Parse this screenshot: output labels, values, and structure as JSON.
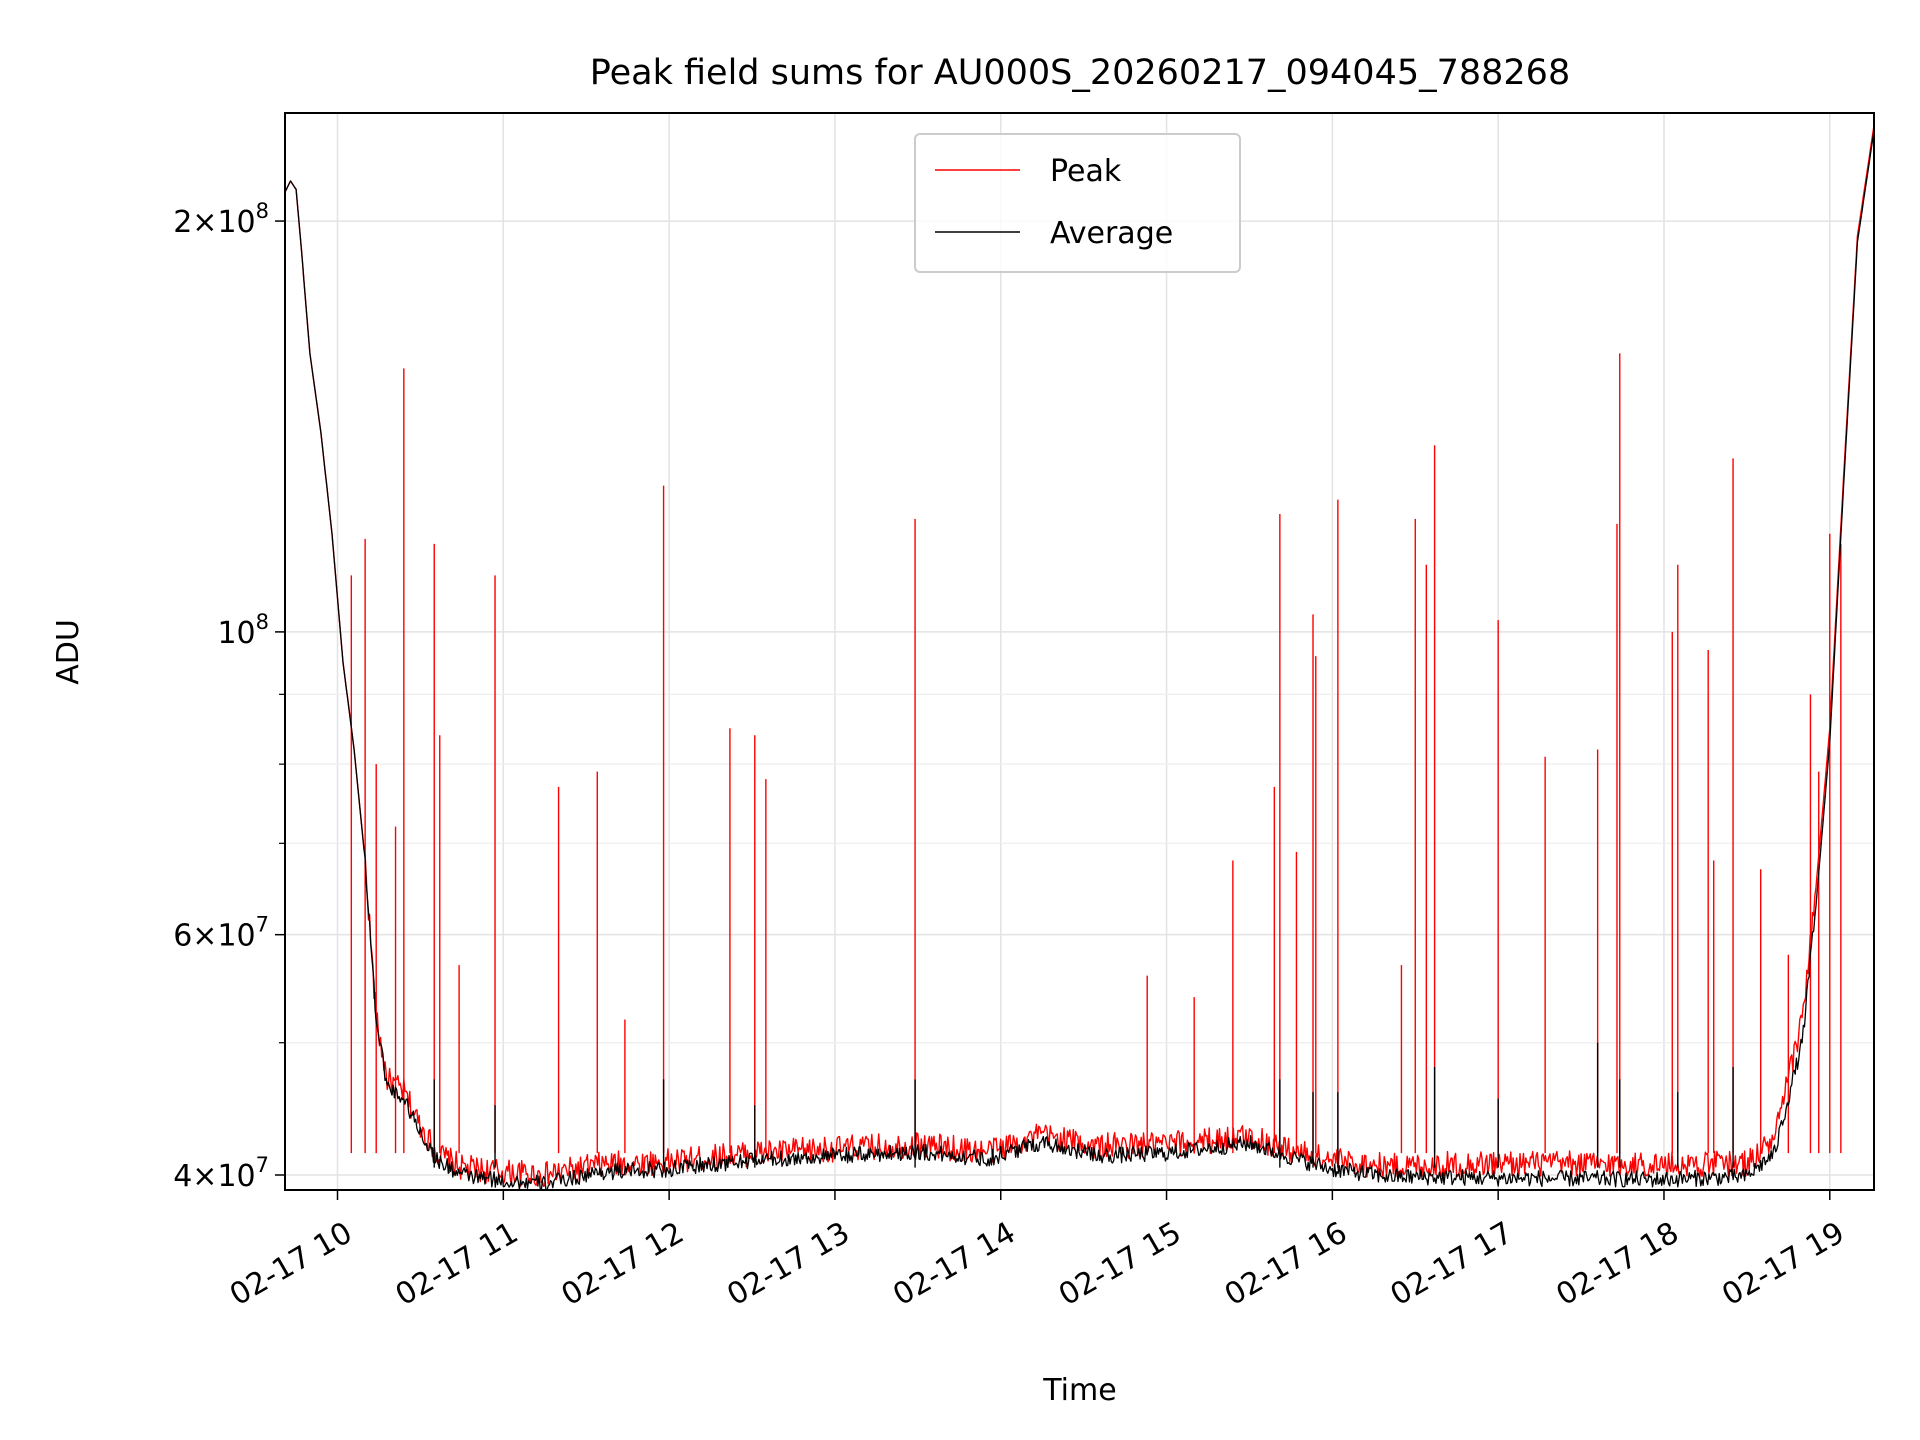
{
  "chart_data": {
    "type": "line",
    "title": "Peak field sums for AU000S_20260217_094045_788268",
    "xlabel": "Time",
    "ylabel": "ADU",
    "yscale": "log",
    "xlim": [
      "2026-02-17 09:41",
      "2026-02-17 19:16"
    ],
    "ylim": [
      39000000,
      240000000
    ],
    "grid": true,
    "legend": {
      "placement": "upper center",
      "entries": [
        "Peak",
        "Average"
      ]
    },
    "x_ticks": [
      {
        "time": "2026-02-17 10:00",
        "label": "02-17 10"
      },
      {
        "time": "2026-02-17 11:00",
        "label": "02-17 11"
      },
      {
        "time": "2026-02-17 12:00",
        "label": "02-17 12"
      },
      {
        "time": "2026-02-17 13:00",
        "label": "02-17 13"
      },
      {
        "time": "2026-02-17 14:00",
        "label": "02-17 14"
      },
      {
        "time": "2026-02-17 15:00",
        "label": "02-17 15"
      },
      {
        "time": "2026-02-17 16:00",
        "label": "02-17 16"
      },
      {
        "time": "2026-02-17 17:00",
        "label": "02-17 17"
      },
      {
        "time": "2026-02-17 18:00",
        "label": "02-17 18"
      },
      {
        "time": "2026-02-17 19:00",
        "label": "02-17 19"
      }
    ],
    "y_major_ticks": [
      {
        "value": 40000000,
        "mantissa": "4",
        "exp": "7"
      },
      {
        "value": 60000000,
        "mantissa": "6",
        "exp": "7"
      },
      {
        "value": 100000000,
        "mantissa": "",
        "exp": "8"
      },
      {
        "value": 200000000,
        "mantissa": "2",
        "exp": "8"
      }
    ],
    "y_minor_ticks": [
      50000000,
      70000000,
      80000000,
      90000000
    ],
    "series": [
      {
        "name": "Peak",
        "color": "#ff0000",
        "baseline": [
          [
            "2026-02-17 09:41",
            210000000
          ],
          [
            "2026-02-17 09:43",
            214000000
          ],
          [
            "2026-02-17 09:45",
            211000000
          ],
          [
            "2026-02-17 09:47",
            190000000
          ],
          [
            "2026-02-17 09:50",
            160000000
          ],
          [
            "2026-02-17 09:54",
            140000000
          ],
          [
            "2026-02-17 09:58",
            118000000
          ],
          [
            "2026-02-17 10:02",
            95000000
          ],
          [
            "2026-02-17 10:06",
            82000000
          ],
          [
            "2026-02-17 10:10",
            68000000
          ],
          [
            "2026-02-17 10:14",
            52000000
          ],
          [
            "2026-02-17 10:18",
            47000000
          ],
          [
            "2026-02-17 10:24",
            46000000
          ],
          [
            "2026-02-17 10:30",
            43500000
          ],
          [
            "2026-02-17 10:36",
            41500000
          ],
          [
            "2026-02-17 10:45",
            40500000
          ],
          [
            "2026-02-17 11:00",
            40200000
          ],
          [
            "2026-02-17 11:15",
            40000000
          ],
          [
            "2026-02-17 11:35",
            40700000
          ],
          [
            "2026-02-17 12:00",
            40900000
          ],
          [
            "2026-02-17 12:30",
            41500000
          ],
          [
            "2026-02-17 13:00",
            41800000
          ],
          [
            "2026-02-17 13:30",
            42100000
          ],
          [
            "2026-02-17 13:55",
            41600000
          ],
          [
            "2026-02-17 14:15",
            42800000
          ],
          [
            "2026-02-17 14:35",
            42000000
          ],
          [
            "2026-02-17 15:00",
            42100000
          ],
          [
            "2026-02-17 15:30",
            42700000
          ],
          [
            "2026-02-17 15:45",
            41700000
          ],
          [
            "2026-02-17 16:00",
            41000000
          ],
          [
            "2026-02-17 16:20",
            40600000
          ],
          [
            "2026-02-17 17:00",
            40800000
          ],
          [
            "2026-02-17 18:00",
            40700000
          ],
          [
            "2026-02-17 18:30",
            40800000
          ],
          [
            "2026-02-17 18:40",
            42500000
          ],
          [
            "2026-02-17 18:50",
            52000000
          ],
          [
            "2026-02-17 18:55",
            65000000
          ],
          [
            "2026-02-17 19:00",
            85000000
          ],
          [
            "2026-02-17 19:05",
            130000000
          ],
          [
            "2026-02-17 19:10",
            195000000
          ],
          [
            "2026-02-17 19:16",
            235000000
          ]
        ],
        "spikes": [
          [
            "2026-02-17 10:05",
            110000000
          ],
          [
            "2026-02-17 10:10",
            117000000
          ],
          [
            "2026-02-17 10:14",
            80000000
          ],
          [
            "2026-02-17 10:21",
            72000000
          ],
          [
            "2026-02-17 10:24",
            156000000
          ],
          [
            "2026-02-17 10:35",
            116000000
          ],
          [
            "2026-02-17 10:37",
            84000000
          ],
          [
            "2026-02-17 10:44",
            57000000
          ],
          [
            "2026-02-17 10:57",
            110000000
          ],
          [
            "2026-02-17 11:20",
            77000000
          ],
          [
            "2026-02-17 11:34",
            79000000
          ],
          [
            "2026-02-17 11:44",
            52000000
          ],
          [
            "2026-02-17 11:58",
            128000000
          ],
          [
            "2026-02-17 12:22",
            85000000
          ],
          [
            "2026-02-17 12:31",
            84000000
          ],
          [
            "2026-02-17 12:35",
            78000000
          ],
          [
            "2026-02-17 13:29",
            121000000
          ],
          [
            "2026-02-17 14:53",
            56000000
          ],
          [
            "2026-02-17 15:10",
            54000000
          ],
          [
            "2026-02-17 15:24",
            68000000
          ],
          [
            "2026-02-17 15:39",
            77000000
          ],
          [
            "2026-02-17 15:41",
            122000000
          ],
          [
            "2026-02-17 15:47",
            69000000
          ],
          [
            "2026-02-17 15:53",
            103000000
          ],
          [
            "2026-02-17 15:54",
            96000000
          ],
          [
            "2026-02-17 16:02",
            125000000
          ],
          [
            "2026-02-17 16:25",
            57000000
          ],
          [
            "2026-02-17 16:30",
            121000000
          ],
          [
            "2026-02-17 16:34",
            112000000
          ],
          [
            "2026-02-17 16:37",
            137000000
          ],
          [
            "2026-02-17 17:00",
            102000000
          ],
          [
            "2026-02-17 17:17",
            81000000
          ],
          [
            "2026-02-17 17:36",
            82000000
          ],
          [
            "2026-02-17 17:43",
            120000000
          ],
          [
            "2026-02-17 17:44",
            160000000
          ],
          [
            "2026-02-17 18:03",
            100000000
          ],
          [
            "2026-02-17 18:05",
            112000000
          ],
          [
            "2026-02-17 18:16",
            97000000
          ],
          [
            "2026-02-17 18:18",
            68000000
          ],
          [
            "2026-02-17 18:25",
            134000000
          ],
          [
            "2026-02-17 18:35",
            67000000
          ],
          [
            "2026-02-17 18:45",
            58000000
          ],
          [
            "2026-02-17 18:53",
            90000000
          ],
          [
            "2026-02-17 18:56",
            79000000
          ],
          [
            "2026-02-17 19:00",
            118000000
          ],
          [
            "2026-02-17 19:04",
            116000000
          ]
        ]
      },
      {
        "name": "Average",
        "color": "#000000",
        "baseline": [
          [
            "2026-02-17 09:41",
            210000000
          ],
          [
            "2026-02-17 09:43",
            214000000
          ],
          [
            "2026-02-17 09:45",
            211000000
          ],
          [
            "2026-02-17 09:47",
            190000000
          ],
          [
            "2026-02-17 09:50",
            160000000
          ],
          [
            "2026-02-17 09:54",
            140000000
          ],
          [
            "2026-02-17 09:58",
            118000000
          ],
          [
            "2026-02-17 10:02",
            95000000
          ],
          [
            "2026-02-17 10:06",
            82000000
          ],
          [
            "2026-02-17 10:10",
            68000000
          ],
          [
            "2026-02-17 10:14",
            52000000
          ],
          [
            "2026-02-17 10:18",
            46500000
          ],
          [
            "2026-02-17 10:24",
            45500000
          ],
          [
            "2026-02-17 10:30",
            43000000
          ],
          [
            "2026-02-17 10:36",
            41000000
          ],
          [
            "2026-02-17 10:45",
            40000000
          ],
          [
            "2026-02-17 11:00",
            39600000
          ],
          [
            "2026-02-17 11:15",
            39400000
          ],
          [
            "2026-02-17 11:35",
            40200000
          ],
          [
            "2026-02-17 12:00",
            40400000
          ],
          [
            "2026-02-17 12:30",
            41000000
          ],
          [
            "2026-02-17 13:00",
            41300000
          ],
          [
            "2026-02-17 13:30",
            41600000
          ],
          [
            "2026-02-17 13:55",
            41100000
          ],
          [
            "2026-02-17 14:15",
            42300000
          ],
          [
            "2026-02-17 14:35",
            41300000
          ],
          [
            "2026-02-17 15:00",
            41500000
          ],
          [
            "2026-02-17 15:30",
            42200000
          ],
          [
            "2026-02-17 15:45",
            41200000
          ],
          [
            "2026-02-17 16:00",
            40400000
          ],
          [
            "2026-02-17 16:20",
            39900000
          ],
          [
            "2026-02-17 17:00",
            39800000
          ],
          [
            "2026-02-17 18:00",
            39700000
          ],
          [
            "2026-02-17 18:30",
            39900000
          ],
          [
            "2026-02-17 18:40",
            41500000
          ],
          [
            "2026-02-17 18:50",
            50000000
          ],
          [
            "2026-02-17 18:55",
            63000000
          ],
          [
            "2026-02-17 19:00",
            83000000
          ],
          [
            "2026-02-17 19:05",
            128000000
          ],
          [
            "2026-02-17 19:10",
            193000000
          ],
          [
            "2026-02-17 19:16",
            233000000
          ]
        ],
        "spikes": [
          [
            "2026-02-17 10:35",
            47000000
          ],
          [
            "2026-02-17 10:57",
            45000000
          ],
          [
            "2026-02-17 11:58",
            47000000
          ],
          [
            "2026-02-17 12:31",
            45000000
          ],
          [
            "2026-02-17 13:29",
            47000000
          ],
          [
            "2026-02-17 15:41",
            47000000
          ],
          [
            "2026-02-17 15:53",
            46000000
          ],
          [
            "2026-02-17 16:02",
            46000000
          ],
          [
            "2026-02-17 16:37",
            48000000
          ],
          [
            "2026-02-17 17:00",
            45500000
          ],
          [
            "2026-02-17 17:36",
            50000000
          ],
          [
            "2026-02-17 17:44",
            47000000
          ],
          [
            "2026-02-17 18:05",
            46000000
          ],
          [
            "2026-02-17 18:25",
            48000000
          ]
        ]
      }
    ]
  }
}
